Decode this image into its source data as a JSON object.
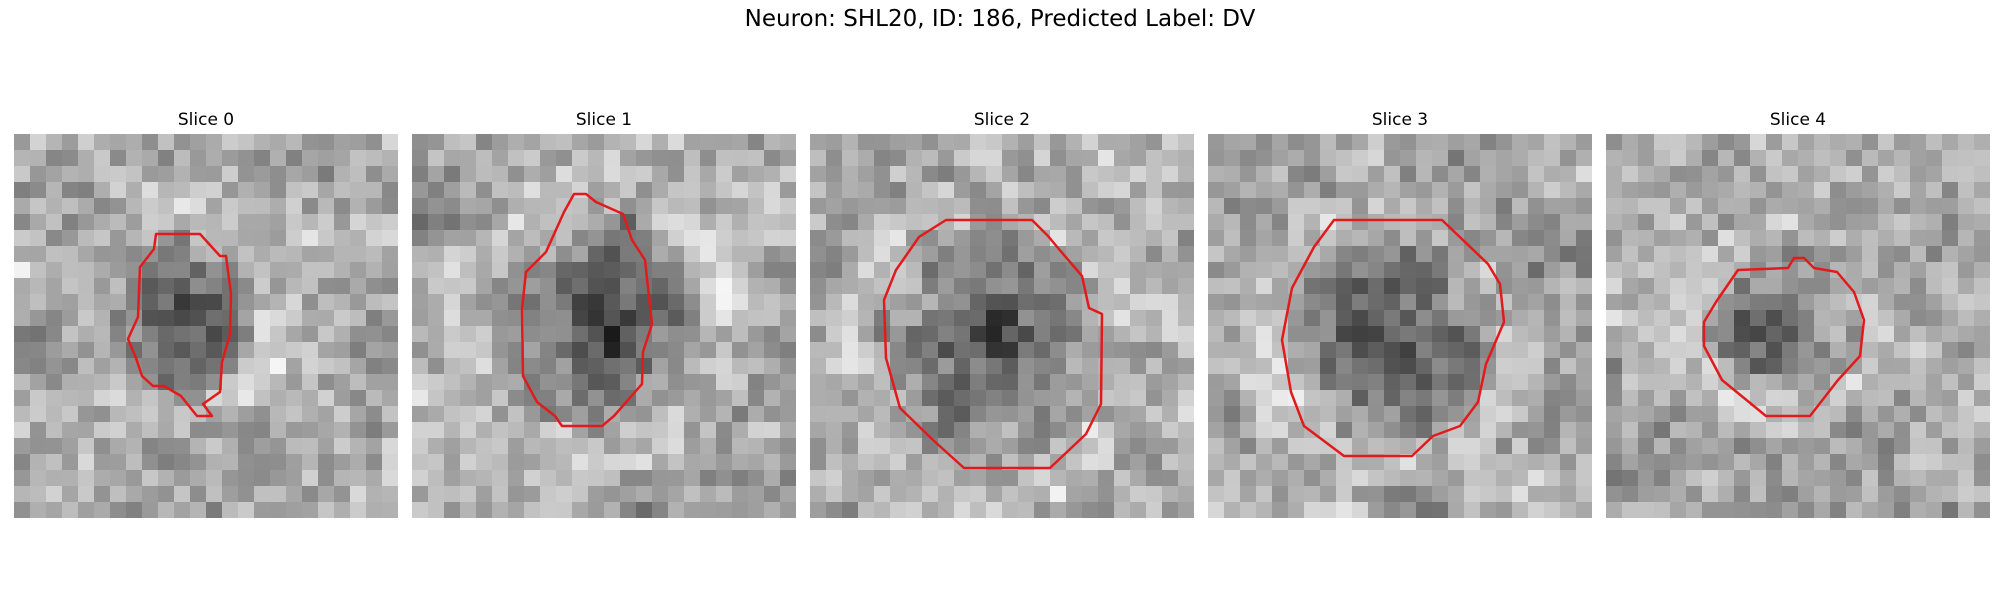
{
  "figure": {
    "title": "Neuron: SHL20, ID: 186, Predicted Label: DV",
    "panels": [
      {
        "title": "Slice 0"
      },
      {
        "title": "Slice 1"
      },
      {
        "title": "Slice 2"
      },
      {
        "title": "Slice 3"
      },
      {
        "title": "Slice 4"
      }
    ]
  },
  "colors": {
    "contour": "#e31a1c",
    "background": "#ffffff"
  }
}
